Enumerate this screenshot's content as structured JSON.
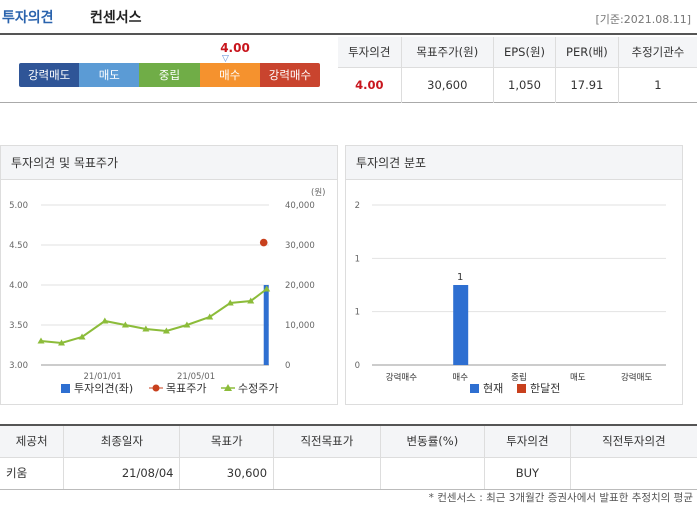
{
  "header": {
    "title": "투자의견",
    "subtitle": "컨센서스",
    "date": "[기준:2021.08.11]"
  },
  "scale": {
    "value": "4.00",
    "segments": [
      {
        "label": "강력매도",
        "color": "#2f5597"
      },
      {
        "label": "매도",
        "color": "#5b9bd5"
      },
      {
        "label": "중립",
        "color": "#70ad47"
      },
      {
        "label": "매수",
        "color": "#f5922e"
      },
      {
        "label": "강력매수",
        "color": "#c9442e"
      }
    ]
  },
  "summary": {
    "headers": [
      "투자의견",
      "목표주가(원)",
      "EPS(원)",
      "PER(배)",
      "추정기관수"
    ],
    "values": [
      "4.00",
      "30,600",
      "1,050",
      "17.91",
      "1"
    ]
  },
  "panels": {
    "left_title": "투자의견 및 목표주가",
    "right_title": "투자의견 분포"
  },
  "chart_data": [
    {
      "type": "line",
      "title": "투자의견 및 목표주가",
      "y_left": {
        "ticks": [
          "5.00",
          "4.50",
          "4.00",
          "3.50",
          "3.00"
        ],
        "range": [
          3.0,
          5.0
        ]
      },
      "y_right": {
        "label": "(원)",
        "ticks": [
          "40,000",
          "30,000",
          "20,000",
          "10,000",
          "0"
        ],
        "range": [
          0,
          40000
        ]
      },
      "x_ticks": [
        "21/01/01",
        "21/05/01"
      ],
      "series": [
        {
          "name": "투자의견(좌)",
          "type": "bar",
          "color": "#2e6fd1",
          "points": [
            {
              "x": 0.99,
              "y": 4.0
            }
          ]
        },
        {
          "name": "목표주가",
          "type": "scatter",
          "color": "#c8401d",
          "points": [
            {
              "x": 0.99,
              "y": 30600
            }
          ]
        },
        {
          "name": "수정주가",
          "type": "line",
          "color": "#8cbc3a",
          "points": [
            {
              "x": 0.0,
              "y": 6000
            },
            {
              "x": 0.09,
              "y": 5500
            },
            {
              "x": 0.18,
              "y": 7000
            },
            {
              "x": 0.28,
              "y": 11000
            },
            {
              "x": 0.37,
              "y": 10000
            },
            {
              "x": 0.46,
              "y": 9000
            },
            {
              "x": 0.55,
              "y": 8500
            },
            {
              "x": 0.64,
              "y": 10000
            },
            {
              "x": 0.74,
              "y": 12000
            },
            {
              "x": 0.83,
              "y": 15500
            },
            {
              "x": 0.92,
              "y": 16000
            },
            {
              "x": 0.99,
              "y": 19000
            }
          ]
        }
      ]
    },
    {
      "type": "bar",
      "title": "투자의견 분포",
      "categories": [
        "강력매수",
        "매수",
        "중립",
        "매도",
        "강력매도"
      ],
      "y_ticks": [
        "2",
        "1",
        "1",
        "0"
      ],
      "ylim": [
        0,
        2
      ],
      "series": [
        {
          "name": "현재",
          "color": "#2e6fd1",
          "values": [
            0,
            1,
            0,
            0,
            0
          ],
          "labels": [
            "",
            "1",
            "",
            "",
            ""
          ]
        },
        {
          "name": "한달전",
          "color": "#c8401d",
          "values": [
            0,
            0,
            0,
            0,
            0
          ],
          "labels": [
            "",
            "",
            "",
            "",
            ""
          ]
        }
      ]
    }
  ],
  "table": {
    "headers": [
      "제공처",
      "최종일자",
      "목표가",
      "직전목표가",
      "변동률(%)",
      "투자의견",
      "직전투자의견"
    ],
    "rows": [
      [
        "키움",
        "21/08/04",
        "30,600",
        "",
        "",
        "BUY",
        ""
      ]
    ]
  },
  "footnote": "* 컨센서스 : 최근 3개월간 증권사에서 발표한 추정치의 평균"
}
